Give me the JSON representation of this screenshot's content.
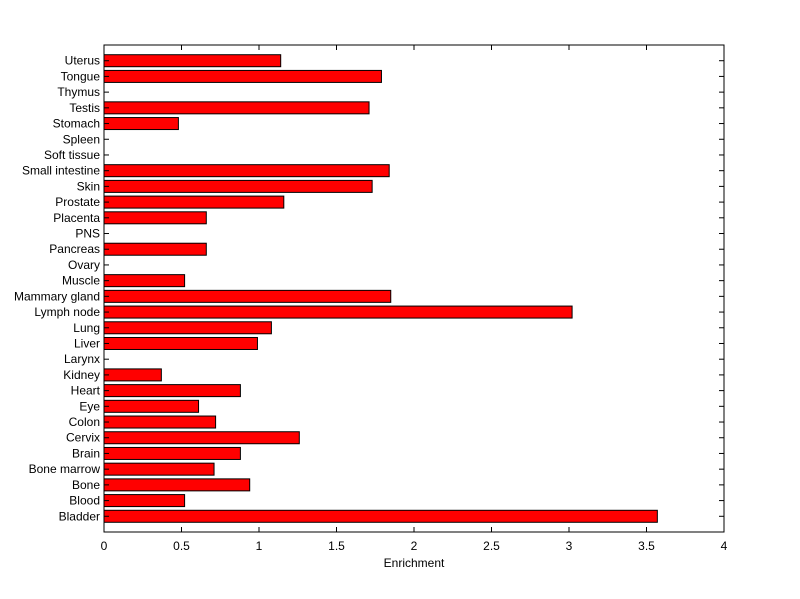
{
  "chart_data": {
    "type": "bar",
    "orientation": "horizontal",
    "title": "",
    "xlabel": "Enrichment",
    "ylabel": "",
    "xlim": [
      0,
      4
    ],
    "xticks": [
      "0",
      "0.5",
      "1",
      "1.5",
      "2",
      "2.5",
      "3",
      "3.5",
      "4"
    ],
    "grid": false,
    "legend": "none",
    "bar_color": "#ff0000",
    "categories": [
      "Bladder",
      "Blood",
      "Bone",
      "Bone marrow",
      "Brain",
      "Cervix",
      "Colon",
      "Eye",
      "Heart",
      "Kidney",
      "Larynx",
      "Liver",
      "Lung",
      "Lymph node",
      "Mammary gland",
      "Muscle",
      "Ovary",
      "Pancreas",
      "PNS",
      "Placenta",
      "Prostate",
      "Skin",
      "Small intestine",
      "Soft tissue",
      "Spleen",
      "Stomach",
      "Testis",
      "Thymus",
      "Tongue",
      "Uterus"
    ],
    "values": [
      3.57,
      0.52,
      0.94,
      0.71,
      0.88,
      1.26,
      0.72,
      0.61,
      0.88,
      0.37,
      0,
      0.99,
      1.08,
      3.02,
      1.85,
      0.52,
      0,
      0.66,
      0,
      0.66,
      1.16,
      1.73,
      1.84,
      0,
      0,
      0.48,
      1.71,
      0,
      1.79,
      1.14
    ]
  }
}
